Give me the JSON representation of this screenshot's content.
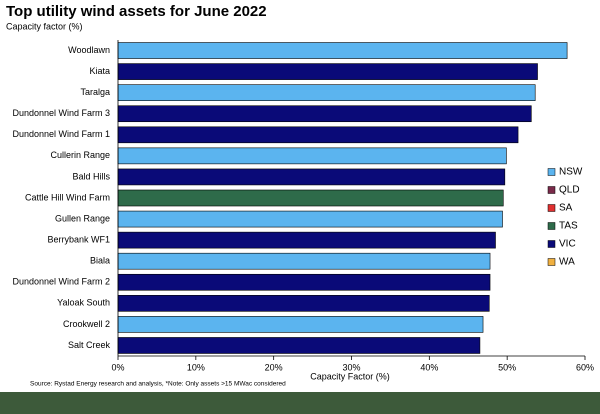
{
  "chart_data": {
    "type": "bar",
    "orientation": "horizontal",
    "title": "Top utility wind assets for June 2022",
    "subtitle": "Capacity factor (%)",
    "x_label": "Capacity Factor (%)",
    "source": "Source: Rystad Energy research and analysis, *Note: Only assets >15 MWac considered",
    "categories": [
      "Woodlawn",
      "Kiata",
      "Taralga",
      "Dundonnel Wind Farm 3",
      "Dundonnel Wind Farm 1",
      "Cullerin Range",
      "Bald Hills",
      "Cattle Hill Wind Farm",
      "Gullen Range",
      "Berrybank WF1",
      "Biala",
      "Dundonnel Wind Farm 2",
      "Yaloak South",
      "Crookwell 2",
      "Salt Creek"
    ],
    "series": [
      {
        "name": "NSW",
        "color": "#5bb4ef",
        "values": [
          57.7,
          null,
          53.6,
          null,
          null,
          49.9,
          null,
          null,
          49.4,
          null,
          47.8,
          null,
          null,
          46.9,
          null
        ]
      },
      {
        "name": "QLD",
        "color": "#7a2a4a",
        "values": [
          null,
          null,
          null,
          null,
          null,
          null,
          null,
          null,
          null,
          null,
          null,
          null,
          null,
          null,
          null
        ]
      },
      {
        "name": "SA",
        "color": "#e03030",
        "values": [
          null,
          null,
          null,
          null,
          null,
          null,
          null,
          null,
          null,
          null,
          null,
          null,
          null,
          null,
          null
        ]
      },
      {
        "name": "TAS",
        "color": "#2e6b4a",
        "values": [
          null,
          null,
          null,
          null,
          null,
          null,
          null,
          49.5,
          null,
          null,
          null,
          null,
          null,
          null,
          null
        ]
      },
      {
        "name": "VIC",
        "color": "#0a0a78",
        "values": [
          null,
          53.9,
          null,
          53.1,
          51.4,
          null,
          49.7,
          null,
          null,
          48.5,
          null,
          47.8,
          47.7,
          null,
          46.5
        ]
      },
      {
        "name": "WA",
        "color": "#f0b040",
        "values": [
          null,
          null,
          null,
          null,
          null,
          null,
          null,
          null,
          null,
          null,
          null,
          null,
          null,
          null,
          null
        ]
      }
    ],
    "xlim": [
      0,
      60
    ],
    "xticks": [
      {
        "value": 0,
        "label": "0%"
      },
      {
        "value": 10,
        "label": "10%"
      },
      {
        "value": 20,
        "label": "20%"
      },
      {
        "value": 30,
        "label": "30%"
      },
      {
        "value": 40,
        "label": "40%"
      },
      {
        "value": 50,
        "label": "50%"
      },
      {
        "value": 60,
        "label": "60%"
      }
    ],
    "legend": "right"
  }
}
